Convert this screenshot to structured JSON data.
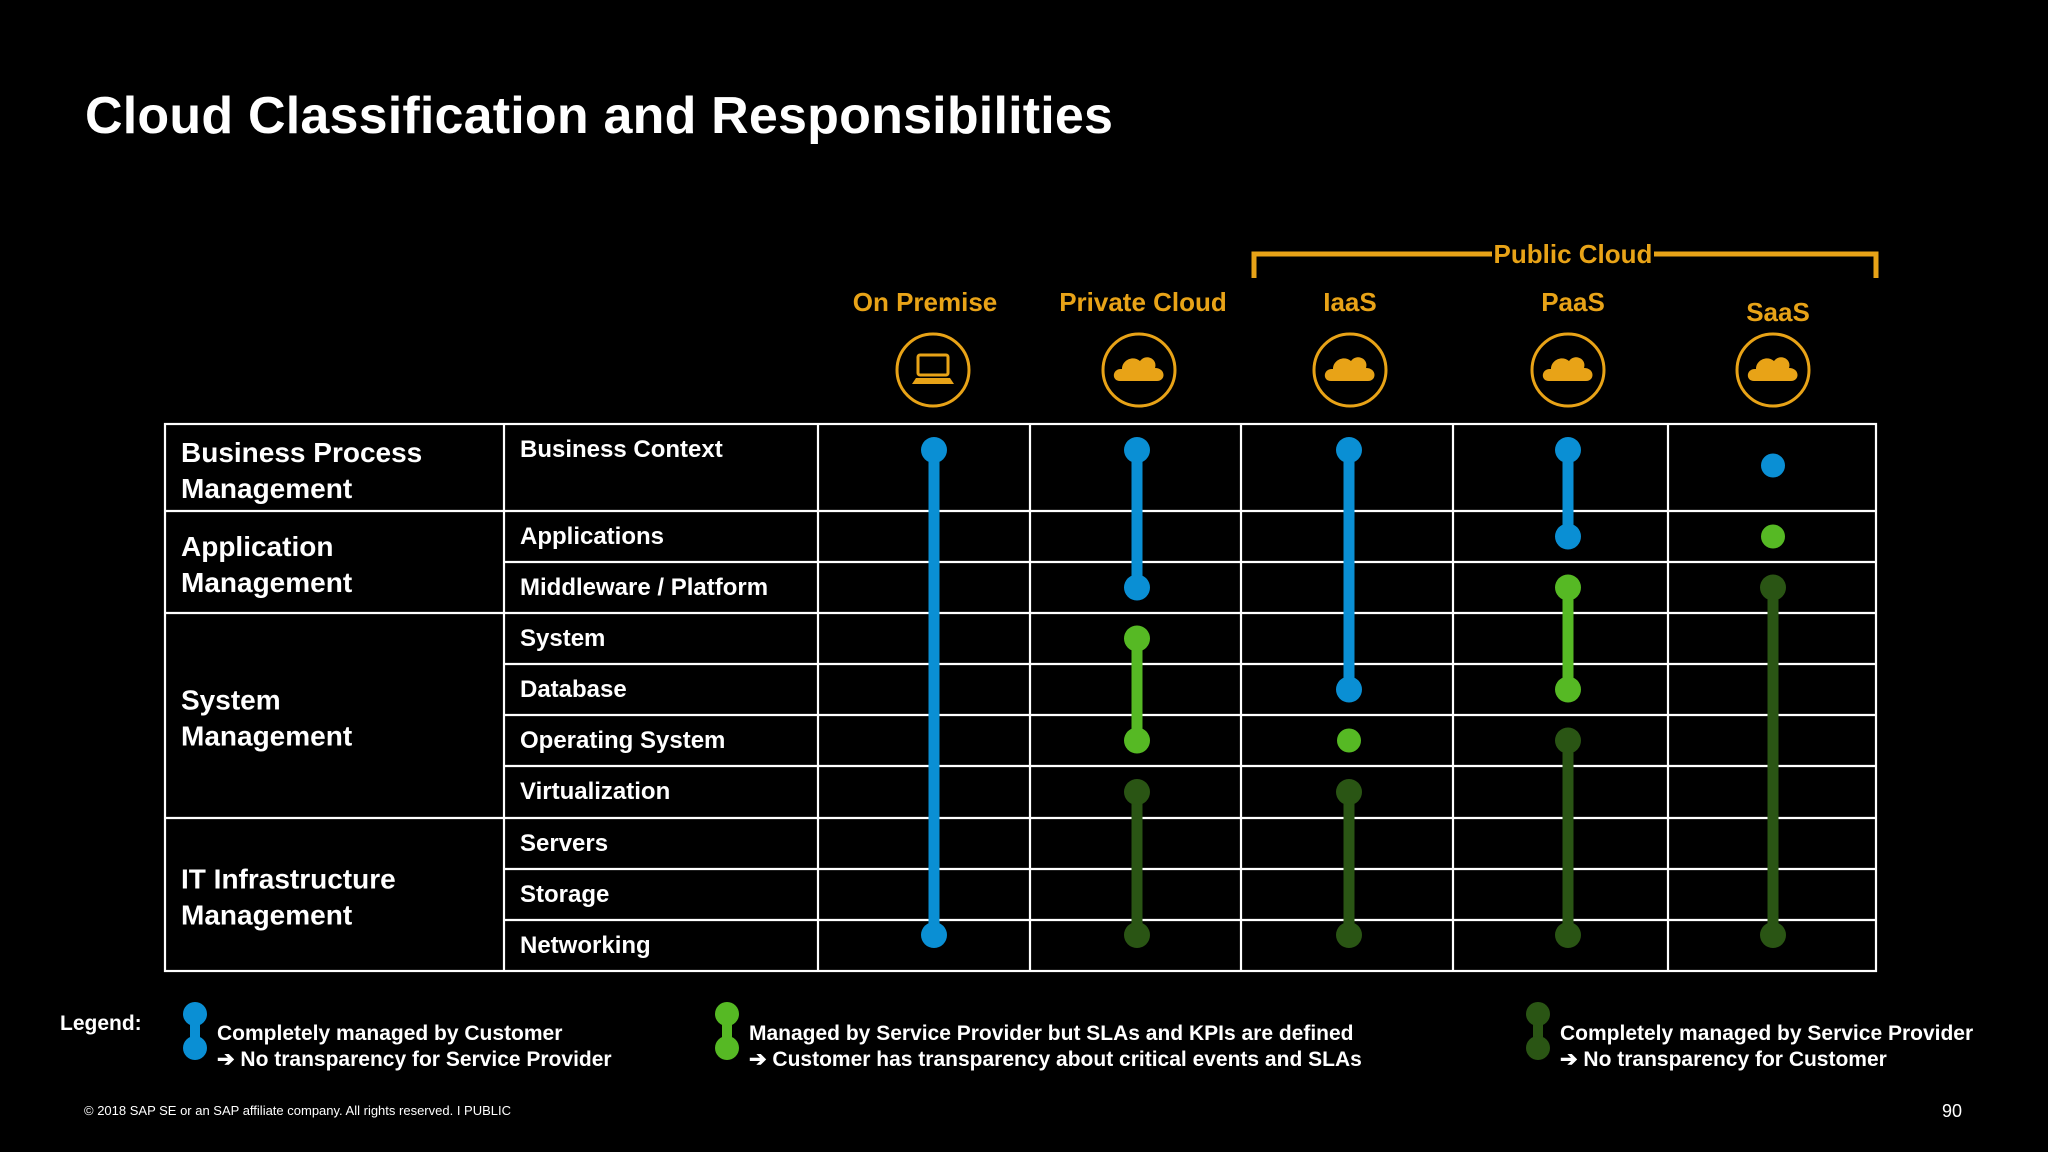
{
  "title": "Cloud Classification and Responsibilities",
  "colors": {
    "customer": "#0a8fd4",
    "sla": "#56b924",
    "provider": "#2a5514",
    "accent": "#e8a317",
    "grid": "#ffffff"
  },
  "columns": {
    "public_cloud_label": "Public Cloud",
    "headers": [
      "On Premise",
      "Private Cloud",
      "IaaS",
      "PaaS",
      "SaaS"
    ],
    "icons": [
      "laptop-icon",
      "cloud-icon",
      "cloud-icon",
      "cloud-icon",
      "cloud-icon"
    ]
  },
  "groups": [
    {
      "label_lines": [
        "Business Process",
        "Management"
      ]
    },
    {
      "label_lines": [
        "Application",
        "Management"
      ]
    },
    {
      "label_lines": [
        "System",
        "Management"
      ]
    },
    {
      "label_lines": [
        "IT Infrastructure",
        "Management"
      ]
    }
  ],
  "layers": [
    "Business Context",
    "Applications",
    "Middleware / Platform",
    "System",
    "Database",
    "Operating System",
    "Virtualization",
    "Servers",
    "Storage",
    "Networking"
  ],
  "responsibility": [
    [
      {
        "type": "customer",
        "from": 0,
        "to": 9
      }
    ],
    [
      {
        "type": "customer",
        "from": 0,
        "to": 2
      },
      {
        "type": "sla",
        "from": 3,
        "to": 5
      },
      {
        "type": "provider",
        "from": 6,
        "to": 9
      }
    ],
    [
      {
        "type": "customer",
        "from": 0,
        "to": 4
      },
      {
        "type": "sla",
        "from": 5,
        "to": 5
      },
      {
        "type": "provider",
        "from": 6,
        "to": 9
      }
    ],
    [
      {
        "type": "customer",
        "from": 0,
        "to": 1
      },
      {
        "type": "sla",
        "from": 2,
        "to": 4
      },
      {
        "type": "provider",
        "from": 5,
        "to": 9
      }
    ],
    [
      {
        "type": "customer",
        "from": 0,
        "to": 0
      },
      {
        "type": "sla",
        "from": 1,
        "to": 1
      },
      {
        "type": "provider",
        "from": 2,
        "to": 9
      }
    ]
  ],
  "legend": {
    "label": "Legend:",
    "items": [
      {
        "type": "customer",
        "line1": "Completely managed by Customer",
        "line2": "➔ No transparency for Service Provider"
      },
      {
        "type": "sla",
        "line1": "Managed by Service Provider but SLAs and KPIs are defined",
        "line2": "➔ Customer has transparency about critical events and SLAs"
      },
      {
        "type": "provider",
        "line1": "Completely managed by Service Provider",
        "line2": "➔ No transparency for Customer"
      }
    ]
  },
  "footer": {
    "copyright": "© 2018 SAP SE or an SAP affiliate company. All rights reserved.   I   PUBLIC",
    "page_number": "90"
  }
}
